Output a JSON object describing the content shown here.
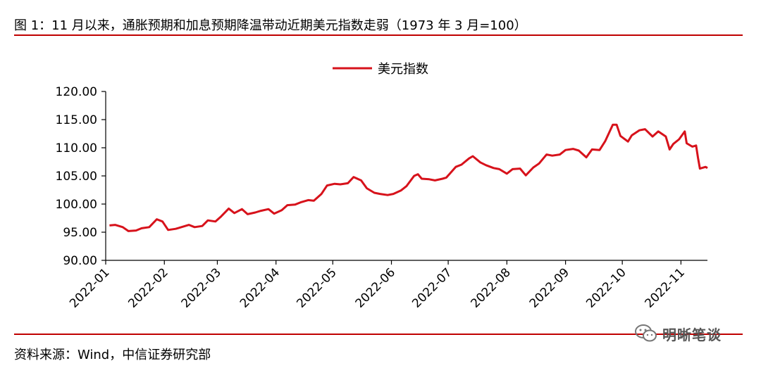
{
  "figure": {
    "title": "图 1：11 月以来，通胀预期和加息预期降温带动近期美元指数走弱（1973 年 3 月=100）",
    "source": "资料来源：Wind，中信证券研究部",
    "watermark": "明晰笔谈",
    "watermark_icon": "wechat-icon"
  },
  "colors": {
    "accent": "#c00000",
    "line": "#d7121b",
    "axis": "#000000"
  },
  "chart_data": {
    "type": "line",
    "legend_position": "top-center",
    "grid": false,
    "ylim": [
      90,
      120
    ],
    "yticks": [
      "90.00",
      "95.00",
      "100.00",
      "105.00",
      "110.00",
      "115.00",
      "120.00"
    ],
    "xticks": [
      "2022-01",
      "2022-02",
      "2022-03",
      "2022-04",
      "2022-05",
      "2022-06",
      "2022-07",
      "2022-08",
      "2022-09",
      "2022-10",
      "2022-11"
    ],
    "xlim": [
      "2022-01-01",
      "2022-11-11"
    ],
    "series": [
      {
        "name": "美元指数",
        "points": [
          [
            "2022-01-03",
            96.2
          ],
          [
            "2022-01-06",
            96.3
          ],
          [
            "2022-01-10",
            95.9
          ],
          [
            "2022-01-13",
            95.2
          ],
          [
            "2022-01-17",
            95.3
          ],
          [
            "2022-01-20",
            95.7
          ],
          [
            "2022-01-24",
            95.9
          ],
          [
            "2022-01-28",
            97.3
          ],
          [
            "2022-01-31",
            96.9
          ],
          [
            "2022-02-03",
            95.4
          ],
          [
            "2022-02-07",
            95.6
          ],
          [
            "2022-02-10",
            95.9
          ],
          [
            "2022-02-14",
            96.3
          ],
          [
            "2022-02-17",
            95.9
          ],
          [
            "2022-02-21",
            96.1
          ],
          [
            "2022-02-24",
            97.1
          ],
          [
            "2022-02-28",
            96.9
          ],
          [
            "2022-03-03",
            97.8
          ],
          [
            "2022-03-07",
            99.2
          ],
          [
            "2022-03-10",
            98.4
          ],
          [
            "2022-03-14",
            99.1
          ],
          [
            "2022-03-17",
            98.2
          ],
          [
            "2022-03-21",
            98.5
          ],
          [
            "2022-03-24",
            98.8
          ],
          [
            "2022-03-28",
            99.1
          ],
          [
            "2022-03-31",
            98.3
          ],
          [
            "2022-04-04",
            98.9
          ],
          [
            "2022-04-07",
            99.8
          ],
          [
            "2022-04-11",
            99.9
          ],
          [
            "2022-04-14",
            100.3
          ],
          [
            "2022-04-18",
            100.7
          ],
          [
            "2022-04-21",
            100.6
          ],
          [
            "2022-04-25",
            101.8
          ],
          [
            "2022-04-28",
            103.3
          ],
          [
            "2022-05-02",
            103.6
          ],
          [
            "2022-05-05",
            103.5
          ],
          [
            "2022-05-09",
            103.7
          ],
          [
            "2022-05-12",
            104.8
          ],
          [
            "2022-05-16",
            104.2
          ],
          [
            "2022-05-19",
            102.8
          ],
          [
            "2022-05-23",
            102.0
          ],
          [
            "2022-05-26",
            101.8
          ],
          [
            "2022-05-30",
            101.6
          ],
          [
            "2022-06-02",
            101.8
          ],
          [
            "2022-06-06",
            102.4
          ],
          [
            "2022-06-09",
            103.2
          ],
          [
            "2022-06-13",
            105.0
          ],
          [
            "2022-06-15",
            105.3
          ],
          [
            "2022-06-17",
            104.5
          ],
          [
            "2022-06-21",
            104.4
          ],
          [
            "2022-06-24",
            104.2
          ],
          [
            "2022-06-28",
            104.5
          ],
          [
            "2022-06-30",
            104.7
          ],
          [
            "2022-07-05",
            106.6
          ],
          [
            "2022-07-08",
            107.0
          ],
          [
            "2022-07-12",
            108.1
          ],
          [
            "2022-07-14",
            108.5
          ],
          [
            "2022-07-18",
            107.4
          ],
          [
            "2022-07-21",
            106.9
          ],
          [
            "2022-07-25",
            106.4
          ],
          [
            "2022-07-28",
            106.2
          ],
          [
            "2022-08-01",
            105.4
          ],
          [
            "2022-08-04",
            106.2
          ],
          [
            "2022-08-08",
            106.3
          ],
          [
            "2022-08-11",
            105.1
          ],
          [
            "2022-08-15",
            106.5
          ],
          [
            "2022-08-18",
            107.2
          ],
          [
            "2022-08-22",
            108.8
          ],
          [
            "2022-08-25",
            108.6
          ],
          [
            "2022-08-29",
            108.8
          ],
          [
            "2022-09-01",
            109.6
          ],
          [
            "2022-09-05",
            109.8
          ],
          [
            "2022-09-08",
            109.5
          ],
          [
            "2022-09-12",
            108.3
          ],
          [
            "2022-09-15",
            109.7
          ],
          [
            "2022-09-19",
            109.6
          ],
          [
            "2022-09-22",
            111.2
          ],
          [
            "2022-09-26",
            114.1
          ],
          [
            "2022-09-28",
            114.1
          ],
          [
            "2022-09-30",
            112.1
          ],
          [
            "2022-10-04",
            111.1
          ],
          [
            "2022-10-06",
            112.2
          ],
          [
            "2022-10-10",
            113.1
          ],
          [
            "2022-10-13",
            113.3
          ],
          [
            "2022-10-17",
            112.0
          ],
          [
            "2022-10-20",
            112.9
          ],
          [
            "2022-10-24",
            112.0
          ],
          [
            "2022-10-26",
            109.7
          ],
          [
            "2022-10-28",
            110.7
          ],
          [
            "2022-10-31",
            111.5
          ],
          [
            "2022-11-03",
            112.9
          ],
          [
            "2022-11-04",
            110.8
          ],
          [
            "2022-11-07",
            110.2
          ],
          [
            "2022-11-09",
            110.4
          ],
          [
            "2022-11-10",
            108.2
          ],
          [
            "2022-11-11",
            106.3
          ],
          [
            "2022-11-14",
            106.6
          ],
          [
            "2022-11-15",
            106.4
          ]
        ]
      }
    ]
  }
}
